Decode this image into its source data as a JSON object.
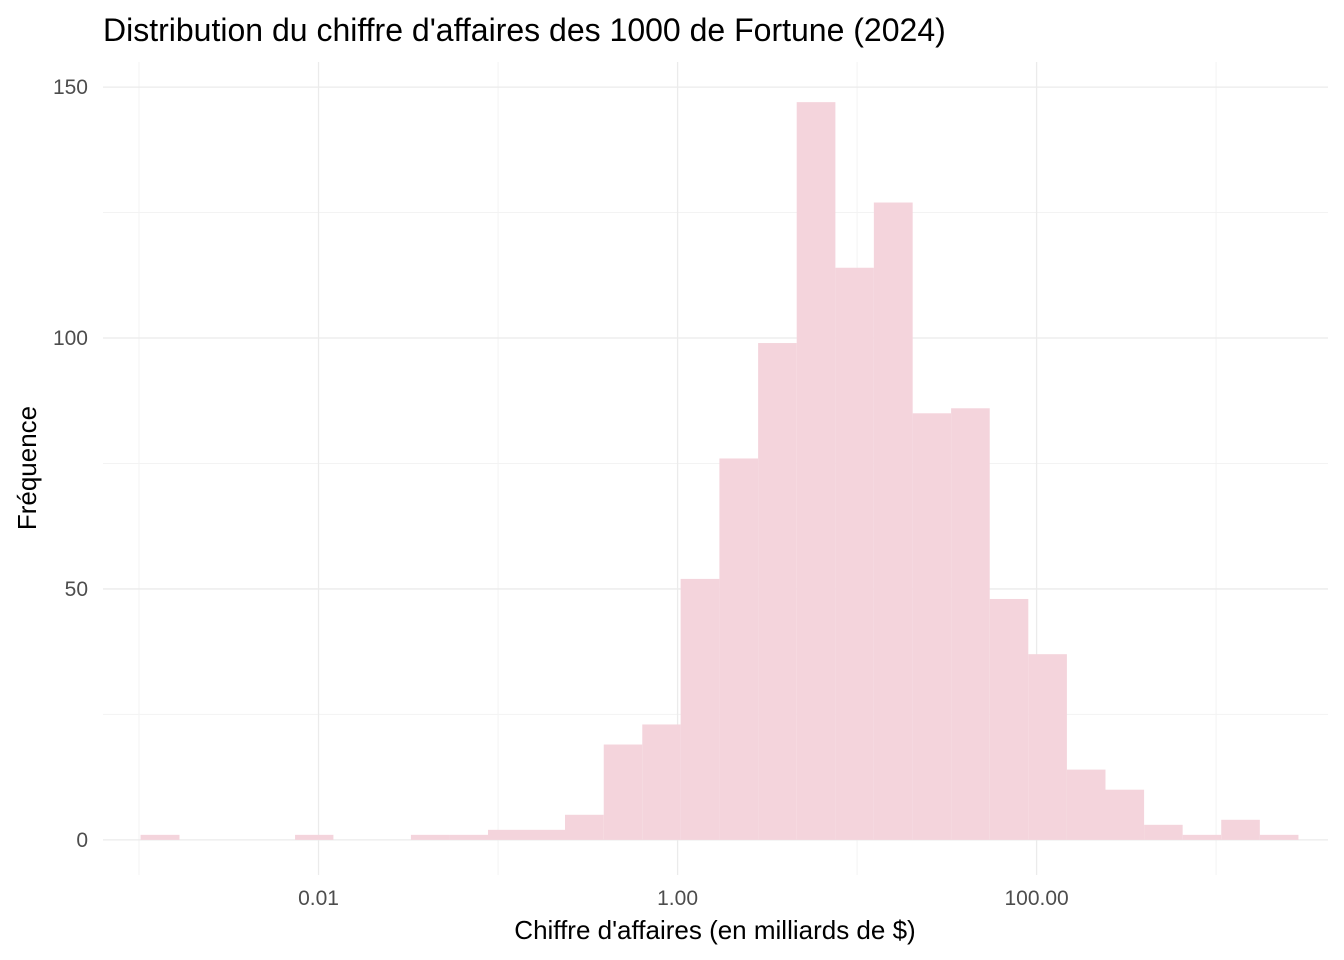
{
  "chart_data": {
    "type": "bar",
    "title": "Distribution du chiffre d'affaires des 1000 de Fortune (2024)",
    "xlabel": "Chiffre d'affaires (en milliards de $)",
    "ylabel": "Fréquence",
    "x_scale": "log10",
    "x_ticks": [
      {
        "value": 0.01,
        "label": "0.01"
      },
      {
        "value": 1,
        "label": "1.00"
      },
      {
        "value": 100,
        "label": "100.00"
      }
    ],
    "y_ticks": [
      {
        "value": 0,
        "label": "0"
      },
      {
        "value": 50,
        "label": "50"
      },
      {
        "value": 100,
        "label": "100"
      },
      {
        "value": 150,
        "label": "150"
      }
    ],
    "xlim": [
      0.00063,
      4200
    ],
    "ylim": [
      -7,
      155
    ],
    "grid": true,
    "bar_color": "#f4d4dc",
    "bins": [
      {
        "x0": 0.00102,
        "x1": 0.00168,
        "count": 1
      },
      {
        "x0": 0.00168,
        "x1": 0.00275,
        "count": 0
      },
      {
        "x0": 0.00275,
        "x1": 0.00451,
        "count": 0
      },
      {
        "x0": 0.00451,
        "x1": 0.0074,
        "count": 0
      },
      {
        "x0": 0.0074,
        "x1": 0.0121,
        "count": 1
      },
      {
        "x0": 0.0121,
        "x1": 0.0199,
        "count": 0
      },
      {
        "x0": 0.0199,
        "x1": 0.0327,
        "count": 0
      },
      {
        "x0": 0.0327,
        "x1": 0.0536,
        "count": 1
      },
      {
        "x0": 0.0536,
        "x1": 0.0879,
        "count": 1
      },
      {
        "x0": 0.0879,
        "x1": 0.144,
        "count": 2
      },
      {
        "x0": 0.144,
        "x1": 0.236,
        "count": 2
      },
      {
        "x0": 0.236,
        "x1": 0.388,
        "count": 5
      },
      {
        "x0": 0.388,
        "x1": 0.636,
        "count": 19
      },
      {
        "x0": 0.636,
        "x1": 1.04,
        "count": 23
      },
      {
        "x0": 1.04,
        "x1": 1.71,
        "count": 52
      },
      {
        "x0": 1.71,
        "x1": 2.81,
        "count": 76
      },
      {
        "x0": 2.81,
        "x1": 4.61,
        "count": 99
      },
      {
        "x0": 4.61,
        "x1": 7.57,
        "count": 147
      },
      {
        "x0": 7.57,
        "x1": 12.4,
        "count": 114
      },
      {
        "x0": 12.4,
        "x1": 20.4,
        "count": 127
      },
      {
        "x0": 20.4,
        "x1": 33.4,
        "count": 85
      },
      {
        "x0": 33.4,
        "x1": 54.8,
        "count": 86
      },
      {
        "x0": 54.8,
        "x1": 89.9,
        "count": 48
      },
      {
        "x0": 89.9,
        "x1": 147.5,
        "count": 37
      },
      {
        "x0": 147.5,
        "x1": 242,
        "count": 14
      },
      {
        "x0": 242,
        "x1": 397,
        "count": 10
      },
      {
        "x0": 397,
        "x1": 651,
        "count": 3
      },
      {
        "x0": 651,
        "x1": 1068,
        "count": 1
      },
      {
        "x0": 1068,
        "x1": 1752,
        "count": 4
      },
      {
        "x0": 1752,
        "x1": 2875,
        "count": 1
      }
    ]
  }
}
